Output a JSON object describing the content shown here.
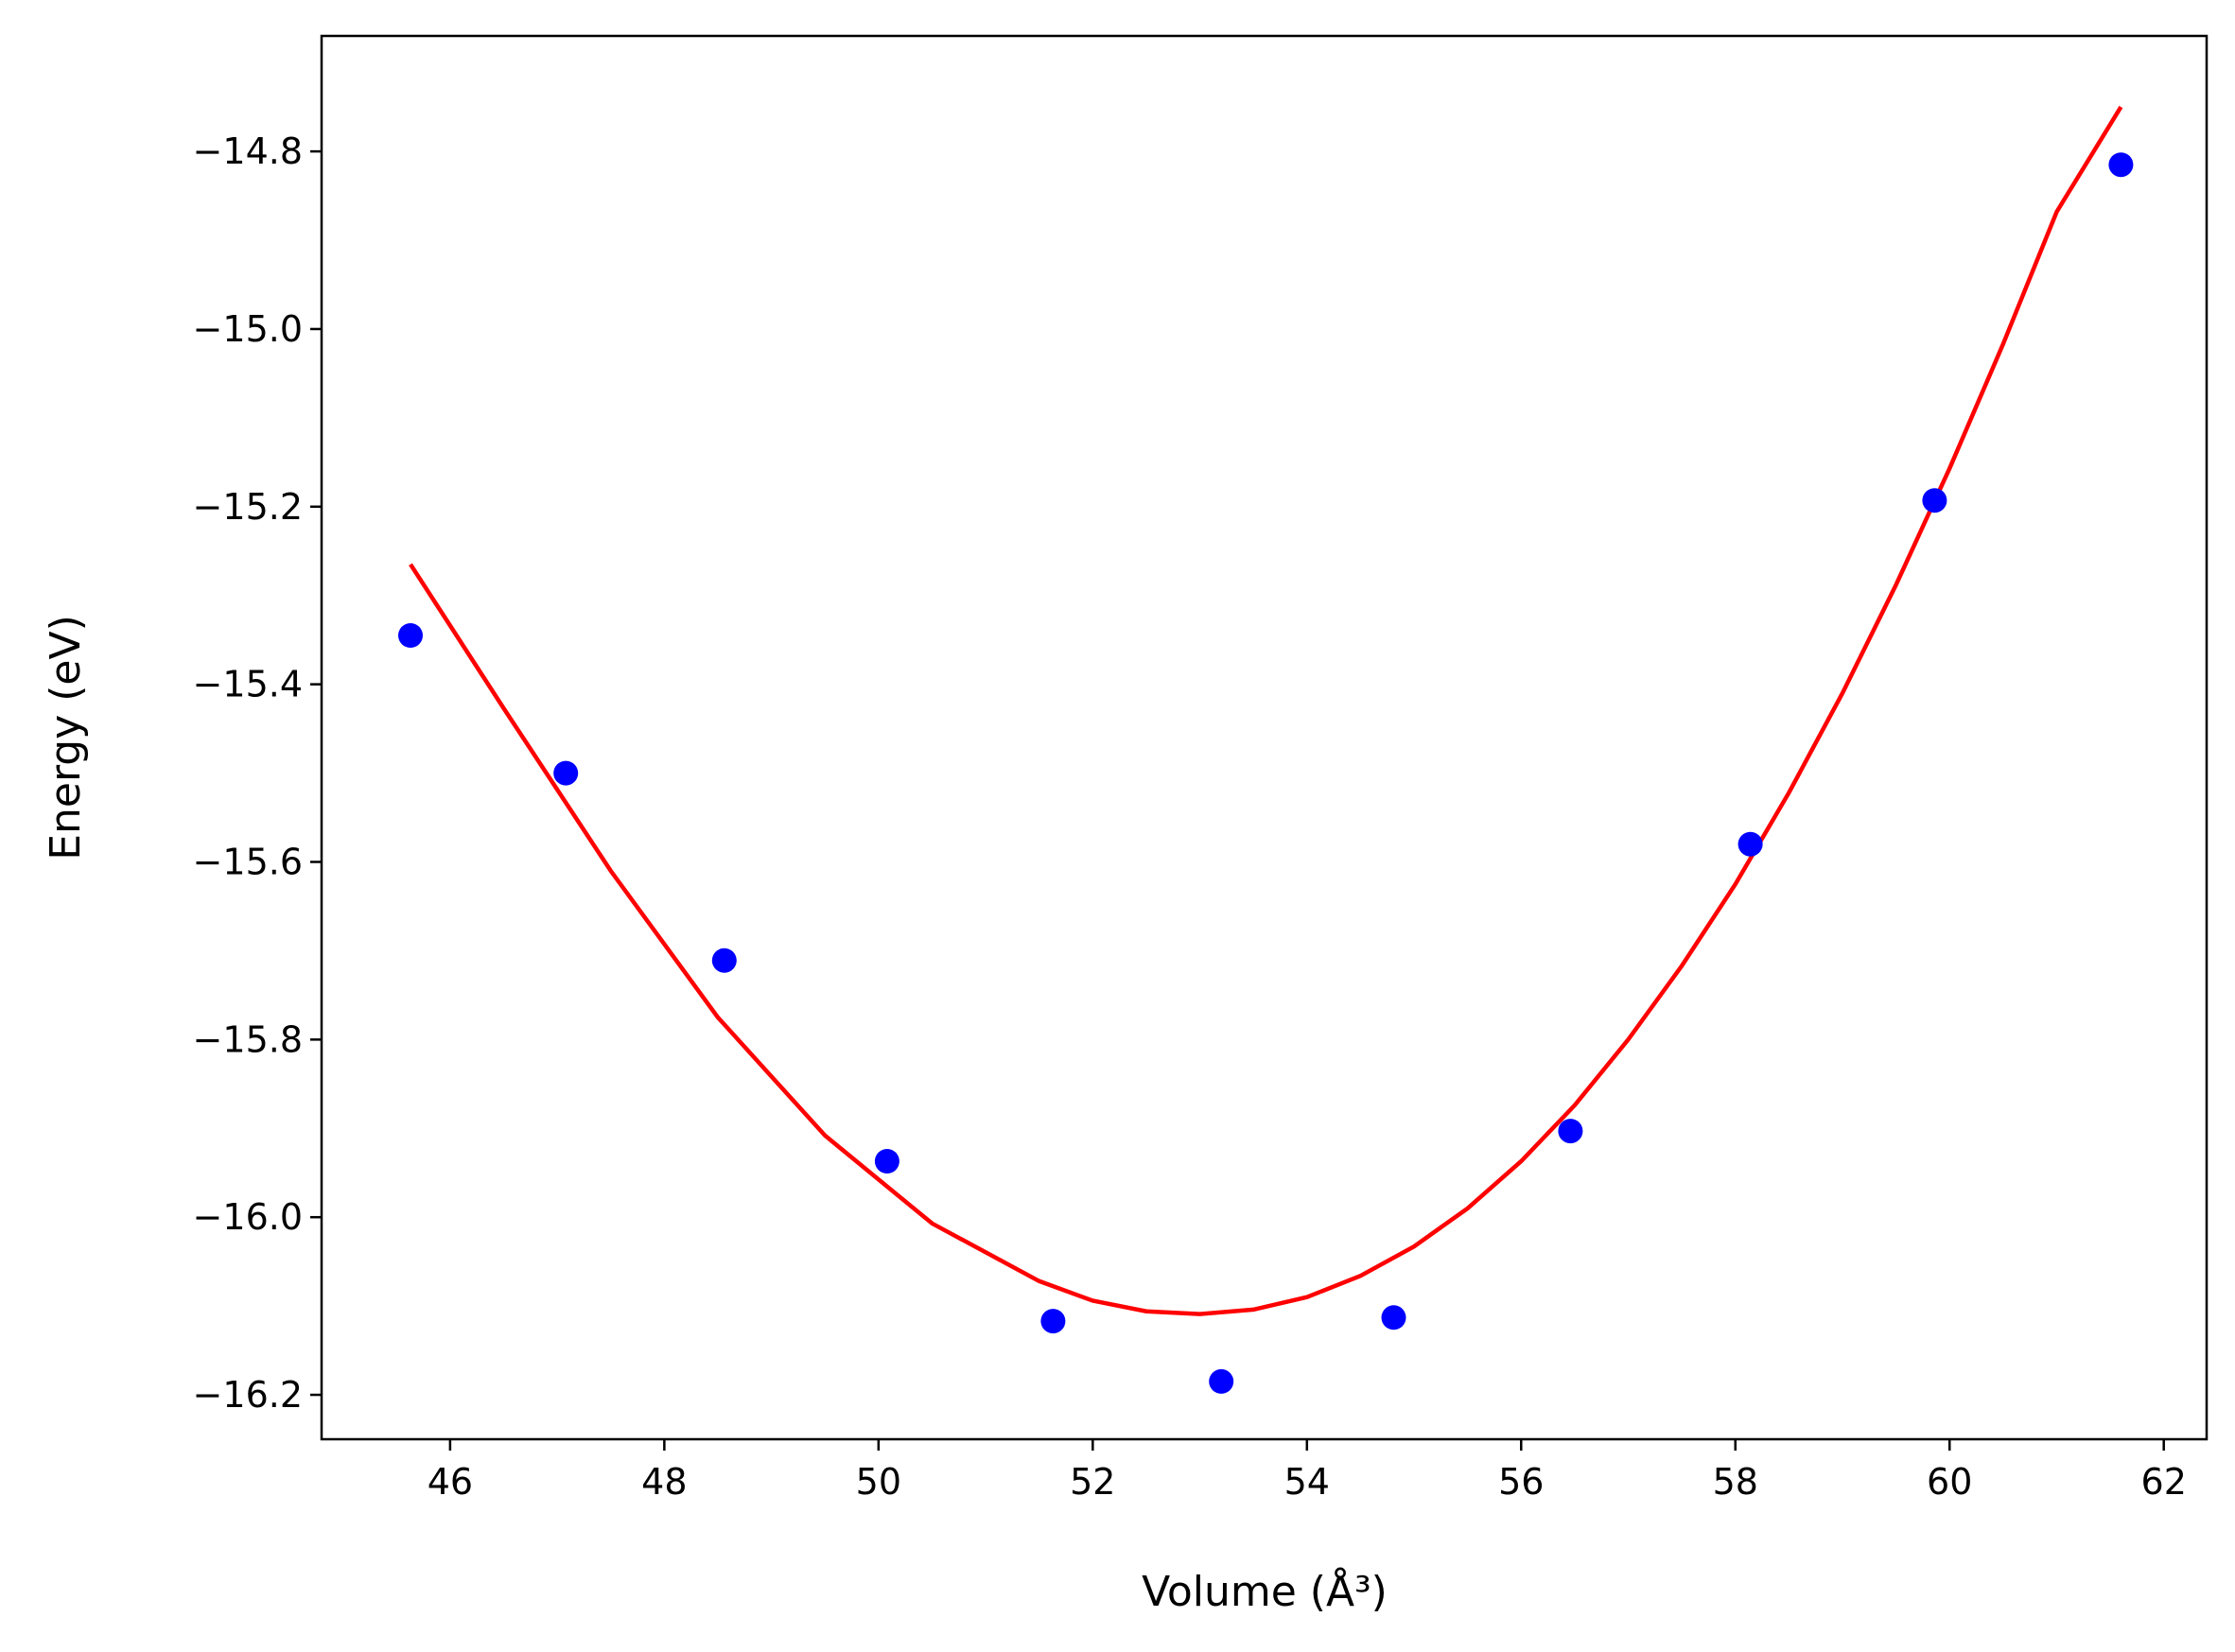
{
  "chart_data": {
    "type": "scatter",
    "title": "",
    "xlabel": "Volume (Å³)",
    "ylabel": "Energy (eV)",
    "xlim": [
      44.8,
      62.4
    ],
    "ylim": [
      -16.25,
      -14.67
    ],
    "xticks": [
      46,
      48,
      50,
      52,
      54,
      56,
      58,
      60,
      62
    ],
    "yticks": [
      -14.8,
      -15.0,
      -15.2,
      -15.4,
      -15.6,
      -15.8,
      -16.0,
      -16.2
    ],
    "xtick_labels": [
      "46",
      "48",
      "50",
      "52",
      "54",
      "56",
      "58",
      "60",
      "62"
    ],
    "ytick_labels": [
      "−14.8",
      "−15.0",
      "−15.2",
      "−15.4",
      "−15.6",
      "−15.8",
      "−16.0",
      "−16.2"
    ],
    "grid": false,
    "legend": false,
    "series": [
      {
        "kind": "scatter",
        "color": "#0000ff",
        "x": [
          45.63,
          47.08,
          48.56,
          50.08,
          51.63,
          53.2,
          54.81,
          56.46,
          58.14,
          59.86,
          61.6
        ],
        "y": [
          -15.345,
          -15.5,
          -15.711,
          -15.937,
          -16.117,
          -16.185,
          -16.113,
          -15.903,
          -15.58,
          -15.193,
          -14.815
        ]
      },
      {
        "kind": "line",
        "color": "#ff0000",
        "x": [
          45.63,
          46.5,
          47.5,
          48.5,
          49.5,
          50.5,
          51.5,
          52.0,
          52.5,
          53.0,
          53.5,
          54.0,
          54.5,
          55.0,
          55.5,
          56.0,
          56.5,
          57.0,
          57.5,
          58.0,
          58.5,
          59.0,
          59.5,
          60.0,
          60.5,
          61.0,
          61.6
        ],
        "y": [
          -15.265,
          -15.427,
          -15.61,
          -15.775,
          -15.908,
          -16.007,
          -16.072,
          -16.094,
          -16.106,
          -16.109,
          -16.104,
          -16.09,
          -16.066,
          -16.033,
          -15.99,
          -15.937,
          -15.874,
          -15.8,
          -15.717,
          -15.625,
          -15.522,
          -15.41,
          -15.288,
          -15.157,
          -15.017,
          -14.868,
          -14.75
        ]
      }
    ]
  }
}
